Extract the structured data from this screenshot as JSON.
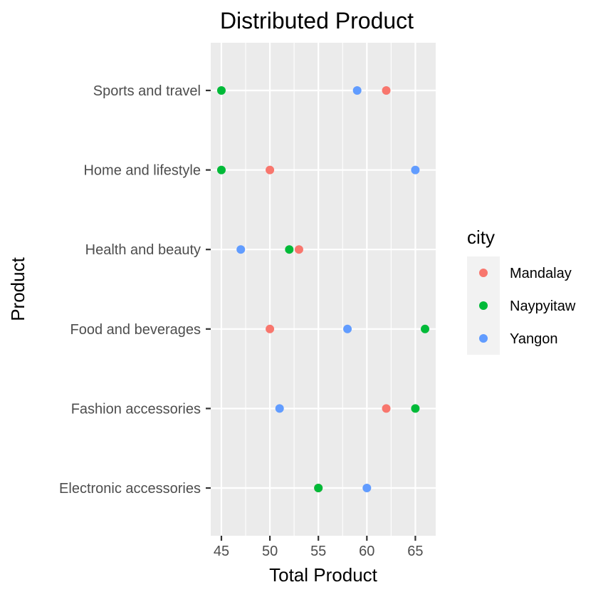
{
  "chart_data": {
    "type": "scatter",
    "title": "Distributed Product",
    "xlabel": "Total Product",
    "ylabel": "Product",
    "xlim": [
      43.9,
      67.1
    ],
    "x_ticks": [
      45,
      50,
      55,
      60,
      65
    ],
    "categories": [
      "Electronic accessories",
      "Fashion accessories",
      "Food and beverages",
      "Health and beauty",
      "Home and lifestyle",
      "Sports and travel"
    ],
    "legend_title": "city",
    "legend_position": "right",
    "grid": true,
    "series": [
      {
        "name": "Mandalay",
        "color": "#F8766D",
        "values": [
          55,
          62,
          50,
          53,
          50,
          62
        ]
      },
      {
        "name": "Naypyitaw",
        "color": "#00BA38",
        "values": [
          55,
          65,
          66,
          52,
          45,
          45
        ]
      },
      {
        "name": "Yangon",
        "color": "#619CFF",
        "values": [
          60,
          51,
          58,
          47,
          65,
          59
        ]
      }
    ]
  }
}
